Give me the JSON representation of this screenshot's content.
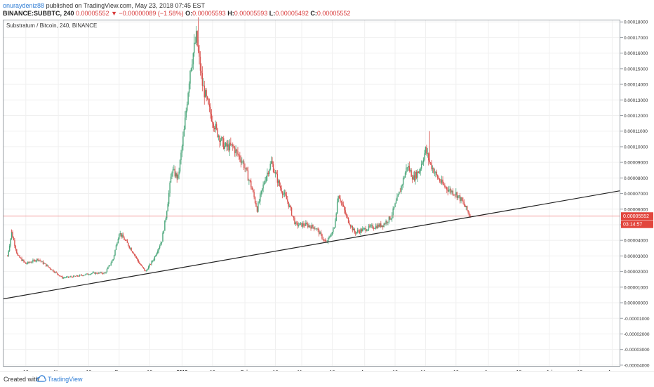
{
  "header": {
    "username": "onuraydeniz88",
    "published_text": "published on TradingView.com, May 23, 2018 07:45 EST",
    "symbol_line": "BINANCE:SUBBTC, 240",
    "open_value": "0.00005552",
    "change_text": "−0.00000089 (−1.58%)",
    "o_label": "O:",
    "o_value": "0.00005593",
    "h_label": "H:",
    "h_value": "0.00005593",
    "l_label": "L:",
    "l_value": "0.00005492",
    "c_label": "C:",
    "c_value": "0.00005552"
  },
  "legend_text": "Substratum / Bitcoin, 240, BINANCE",
  "footer": {
    "created": "Created with",
    "brand": "TradingView"
  },
  "colors": {
    "up": "#4aa67a",
    "down": "#d9534f",
    "price_line": "#f08080",
    "price_label_bg": "#e2463d",
    "trendline": "#222222",
    "grid": "#f0f0f0"
  },
  "chart_data": {
    "type": "candlestick",
    "title": "Substratum / Bitcoin, 240, BINANCE",
    "ylim": [
      -4e-05,
      0.00018
    ],
    "y_ticks": [
      "0.00018000",
      "0.00017000",
      "0.00016000",
      "0.00015000",
      "0.00014000",
      "0.00013000",
      "0.00012000",
      "0.00011000",
      "0.00010000",
      "0.00009000",
      "0.00008000",
      "0.00007000",
      "0.00006000",
      "0.00005000",
      "0.00004000",
      "0.00003000",
      "0.00002000",
      "0.00001000",
      "0.00000000",
      "-0.00001000",
      "-0.00002000",
      "-0.00003000",
      "-0.00004000"
    ],
    "x_ticks": [
      "16",
      "Nov",
      "16",
      "Dec",
      "16",
      "2018",
      "16",
      "Feb",
      "16",
      "Mar",
      "16",
      "Apr",
      "16",
      "May",
      "16",
      "Jun",
      "16",
      "Jul",
      "16",
      "Aug"
    ],
    "x_tick_dates": [
      "2017-10-16",
      "2017-11-01",
      "2017-11-16",
      "2017-12-01",
      "2017-12-16",
      "2018-01-01",
      "2018-01-16",
      "2018-02-01",
      "2018-02-16",
      "2018-03-01",
      "2018-03-16",
      "2018-04-01",
      "2018-04-16",
      "2018-05-01",
      "2018-05-16",
      "2018-06-01",
      "2018-06-16",
      "2018-07-01",
      "2018-07-16",
      "2018-08-01"
    ],
    "x_range": [
      "2017-10-05",
      "2018-08-05"
    ],
    "price_path": [
      [
        "2017-10-07",
        3e-05
      ],
      [
        "2017-10-09",
        4.5e-05
      ],
      [
        "2017-10-12",
        3e-05
      ],
      [
        "2017-10-16",
        2.5e-05
      ],
      [
        "2017-10-22",
        2.8e-05
      ],
      [
        "2017-10-27",
        2.3e-05
      ],
      [
        "2017-11-03",
        1.6e-05
      ],
      [
        "2017-11-10",
        1.7e-05
      ],
      [
        "2017-11-18",
        1.9e-05
      ],
      [
        "2017-11-24",
        1.9e-05
      ],
      [
        "2017-11-28",
        2.8e-05
      ],
      [
        "2017-12-01",
        4.5e-05
      ],
      [
        "2017-12-05",
        3.8e-05
      ],
      [
        "2017-12-08",
        3.2e-05
      ],
      [
        "2017-12-11",
        2.5e-05
      ],
      [
        "2017-12-14",
        2e-05
      ],
      [
        "2017-12-18",
        2.8e-05
      ],
      [
        "2017-12-22",
        4e-05
      ],
      [
        "2017-12-24",
        5.5e-05
      ],
      [
        "2017-12-27",
        8.5e-05
      ],
      [
        "2017-12-30",
        8e-05
      ],
      [
        "2018-01-02",
        0.00011
      ],
      [
        "2018-01-05",
        0.00015
      ],
      [
        "2018-01-08",
        0.00017
      ],
      [
        "2018-01-11",
        0.00014
      ],
      [
        "2018-01-14",
        0.000125
      ],
      [
        "2018-01-18",
        0.00011
      ],
      [
        "2018-01-22",
        0.0001
      ],
      [
        "2018-01-26",
        0.0001
      ],
      [
        "2018-01-31",
        9e-05
      ],
      [
        "2018-02-04",
        7.5e-05
      ],
      [
        "2018-02-07",
        6e-05
      ],
      [
        "2018-02-11",
        8e-05
      ],
      [
        "2018-02-14",
        9e-05
      ],
      [
        "2018-02-18",
        7.5e-05
      ],
      [
        "2018-02-22",
        6.5e-05
      ],
      [
        "2018-02-26",
        5e-05
      ],
      [
        "2018-03-03",
        5e-05
      ],
      [
        "2018-03-08",
        4.8e-05
      ],
      [
        "2018-03-13",
        3.8e-05
      ],
      [
        "2018-03-17",
        4.8e-05
      ],
      [
        "2018-03-19",
        7e-05
      ],
      [
        "2018-03-23",
        5.5e-05
      ],
      [
        "2018-03-27",
        4.5e-05
      ],
      [
        "2018-04-03",
        4.8e-05
      ],
      [
        "2018-04-10",
        5e-05
      ],
      [
        "2018-04-14",
        5.5e-05
      ],
      [
        "2018-04-18",
        7e-05
      ],
      [
        "2018-04-22",
        8.8e-05
      ],
      [
        "2018-04-25",
        8e-05
      ],
      [
        "2018-04-28",
        8.5e-05
      ],
      [
        "2018-05-01",
        9.8e-05
      ],
      [
        "2018-05-03",
        9e-05
      ],
      [
        "2018-05-07",
        8e-05
      ],
      [
        "2018-05-10",
        7.5e-05
      ],
      [
        "2018-05-13",
        7.2e-05
      ],
      [
        "2018-05-16",
        7e-05
      ],
      [
        "2018-05-19",
        6.5e-05
      ],
      [
        "2018-05-23",
        5.55e-05
      ]
    ],
    "spikes": [
      [
        "2017-10-09",
        4.7e-05
      ],
      [
        "2018-01-09",
        0.000183
      ],
      [
        "2018-05-03",
        0.00011
      ],
      [
        "2018-01-21",
        0.0001
      ]
    ],
    "last_price": 5.552e-05,
    "last_price_label": "0.00005552",
    "countdown_label": "03:14:57",
    "trendline": {
      "start": [
        "2017-10-05",
        2.5e-06
      ],
      "end": [
        "2018-08-05",
        7.18e-05
      ]
    }
  }
}
